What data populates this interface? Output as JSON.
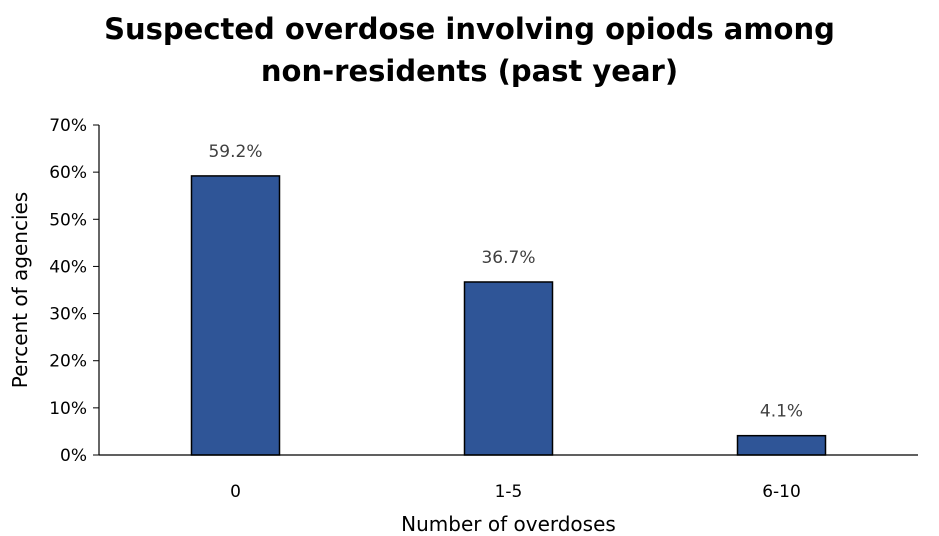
{
  "chart_data": {
    "type": "bar",
    "title_lines": [
      "Suspected overdose involving opiods among",
      "non-residents (past year)"
    ],
    "xlabel": "Number of overdoses",
    "ylabel": "Percent of agencies",
    "categories": [
      "0",
      "1-5",
      "6-10"
    ],
    "values": [
      59.2,
      36.7,
      4.1
    ],
    "data_labels": [
      "59.2%",
      "36.7%",
      "4.1%"
    ],
    "ylim": [
      0,
      70
    ],
    "yticks": [
      0,
      10,
      20,
      30,
      40,
      50,
      60,
      70
    ],
    "ytick_labels": [
      "0%",
      "10%",
      "20%",
      "30%",
      "40%",
      "50%",
      "60%",
      "70%"
    ],
    "grid": false,
    "legend": "none",
    "bar_color": "#2F5597",
    "bar_edge_color": "#000000"
  }
}
